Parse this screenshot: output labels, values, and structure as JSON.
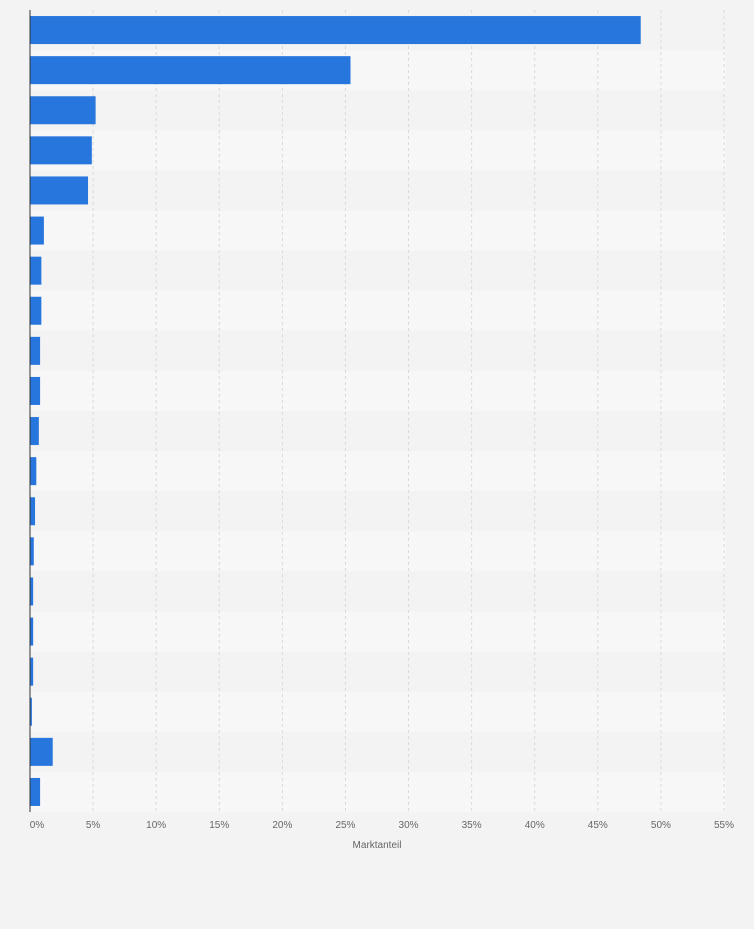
{
  "chart_data": {
    "type": "bar",
    "orientation": "horizontal",
    "title": "",
    "xlabel": "Marktanteil",
    "ylabel": "",
    "xlim": [
      0,
      55
    ],
    "x_tick_labels": [
      "0%",
      "5%",
      "10%",
      "15%",
      "20%",
      "25%",
      "30%",
      "35%",
      "40%",
      "45%",
      "50%",
      "55%"
    ],
    "grid": true,
    "legend": "none",
    "values": [
      48.4,
      25.4,
      5.2,
      4.9,
      4.6,
      1.1,
      0.9,
      0.9,
      0.8,
      0.8,
      0.7,
      0.5,
      0.4,
      0.3,
      0.25,
      0.25,
      0.25,
      0.15,
      1.8,
      0.8
    ],
    "bar_color": "#2776dd",
    "row_colors": [
      "#f3f3f3",
      "#f7f7f7"
    ],
    "background_color": "#f3f3f3"
  }
}
